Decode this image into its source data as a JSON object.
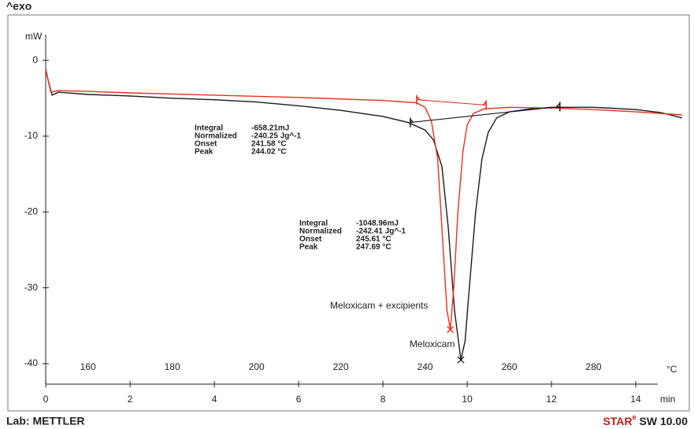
{
  "chart_data": {
    "type": "line",
    "header": "^exo",
    "footer_left": "Lab: METTLER",
    "brand": {
      "name": "STAR",
      "sup": "e",
      "version": " SW 10.00"
    },
    "y_label": "mW",
    "x_label": "min",
    "x2_label": "°C",
    "xlim": [
      -0.9,
      15.27
    ],
    "ylim": [
      -42.7,
      3.8
    ],
    "x2lim": [
      141,
      302.7
    ],
    "xticks": [
      0,
      2,
      4,
      6,
      8,
      10,
      12,
      14
    ],
    "yticks": [
      0,
      -10,
      -20,
      -30,
      -40
    ],
    "x2ticks": [
      160,
      180,
      200,
      220,
      240,
      260,
      280
    ],
    "series": [
      {
        "color": "#1a1a1a",
        "x": [
          0,
          0.05,
          0.15,
          0.3,
          1,
          2,
          3,
          4,
          5,
          6,
          7,
          8,
          8.6,
          9,
          9.2,
          9.4,
          9.55,
          9.7,
          9.85,
          9.95,
          10.05,
          10.2,
          10.35,
          10.5,
          10.7,
          11,
          11.5,
          12,
          13,
          14,
          14.6,
          15.1
        ],
        "values": [
          -1.2,
          -2.5,
          -4.6,
          -4.2,
          -4.5,
          -4.7,
          -5,
          -5.2,
          -5.5,
          -6,
          -6.6,
          -7.4,
          -8.2,
          -9.2,
          -10.5,
          -14,
          -22,
          -33,
          -39.5,
          -37,
          -30,
          -20,
          -13,
          -9.5,
          -7.6,
          -6.8,
          -6.4,
          -6.2,
          -6.2,
          -6.5,
          -6.9,
          -7.6
        ]
      },
      {
        "color": "#e8301c",
        "x": [
          0,
          0.05,
          0.12,
          0.3,
          1,
          2,
          4,
          6,
          8,
          8.8,
          9.0,
          9.15,
          9.3,
          9.42,
          9.52,
          9.6,
          9.68,
          9.78,
          9.9,
          10.0,
          10.15,
          10.4,
          11,
          12,
          13,
          14,
          15.1
        ],
        "values": [
          -1.2,
          -2.5,
          -4.2,
          -4,
          -4.1,
          -4.3,
          -4.6,
          -4.9,
          -5.3,
          -5.6,
          -6.2,
          -8,
          -13,
          -24,
          -33,
          -35.5,
          -30,
          -20,
          -12,
          -8.5,
          -7,
          -6.4,
          -6.2,
          -6.3,
          -6.5,
          -6.8,
          -7.2
        ]
      },
      {
        "color": "#1a1a1a",
        "x": [
          8.65,
          12.2
        ],
        "values": [
          -8.2,
          -6.1
        ]
      },
      {
        "color": "#e8301c",
        "x": [
          8.8,
          10.45
        ],
        "values": [
          -5.2,
          -5.9
        ]
      }
    ],
    "peak_marks": [
      {
        "color": "#e8301c",
        "x": 9.6,
        "y": -35.5
      },
      {
        "color": "#1a1a1a",
        "x": 9.85,
        "y": -39.5
      }
    ],
    "annotations": [
      {
        "color": "#e8301c",
        "rows": [
          [
            "Integral",
            "-658.21mJ"
          ],
          [
            "Normalized",
            "-240.25 Jg^-1"
          ],
          [
            "Onset",
            "241.58 °C"
          ],
          [
            "Peak",
            "244.02 °C"
          ]
        ]
      },
      {
        "color": "#222222",
        "rows": [
          [
            "Integral",
            "-1048.96mJ"
          ],
          [
            "Normalized",
            "-242.41 Jg^-1"
          ],
          [
            "Onset",
            "245.61 °C"
          ],
          [
            "Peak",
            "247.69 °C"
          ]
        ]
      }
    ],
    "curve_labels": [
      {
        "color": "#e8301c",
        "text": "Meloxicam + excipients"
      },
      {
        "color": "#222222",
        "text": "Meloxicam"
      }
    ]
  }
}
